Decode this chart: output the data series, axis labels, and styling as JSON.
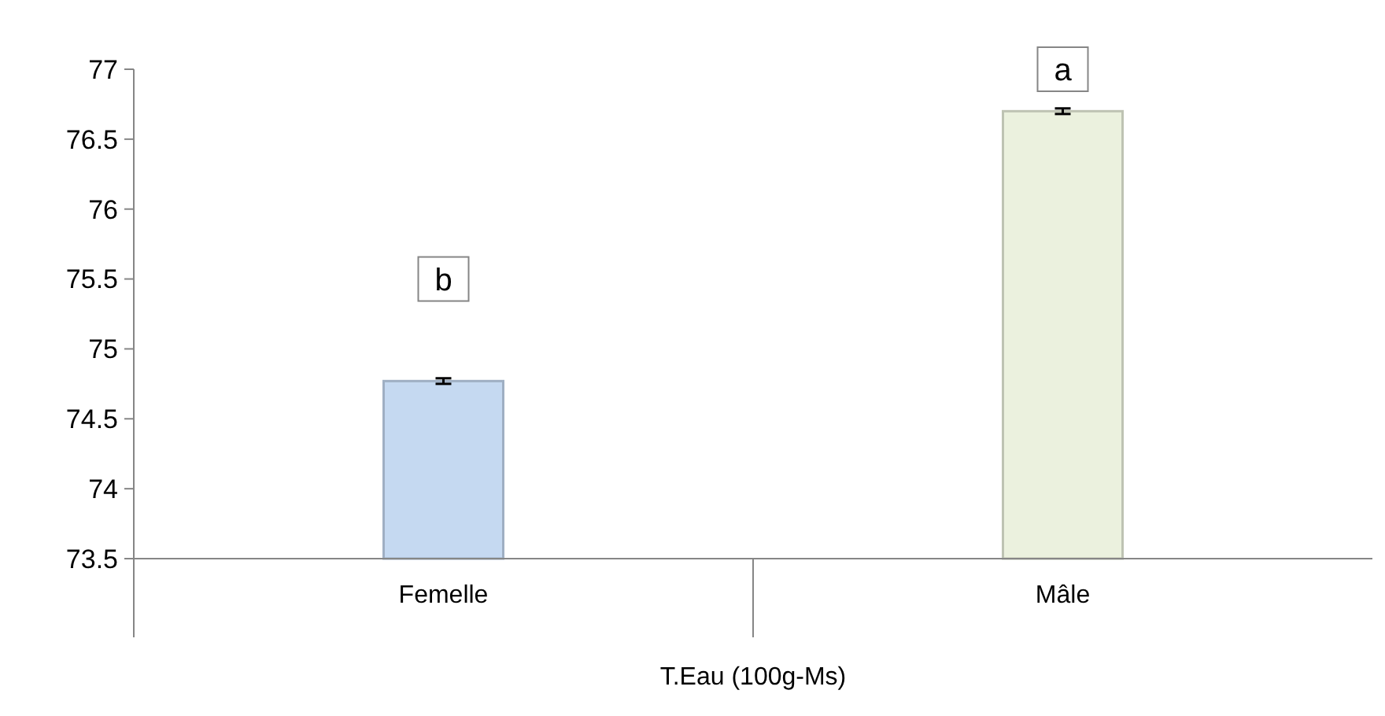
{
  "chart_data": {
    "type": "bar",
    "xlabel": "T.Eau (100g-Ms)",
    "categories": [
      "Femelle",
      "Mâle"
    ],
    "values": [
      74.77,
      76.7
    ],
    "colors": [
      "#c5d9f1",
      "#ebf1de"
    ],
    "errors": [
      0.02,
      0.02
    ],
    "ylim": [
      73.5,
      77
    ],
    "yticks": [
      73.5,
      74,
      74.5,
      75,
      75.5,
      76,
      76.5,
      77
    ],
    "grid": false,
    "annotations": [
      {
        "text": "b",
        "x": "Femelle",
        "y": 75.5
      },
      {
        "text": "a",
        "x": "Mâle",
        "y": 77
      }
    ]
  }
}
